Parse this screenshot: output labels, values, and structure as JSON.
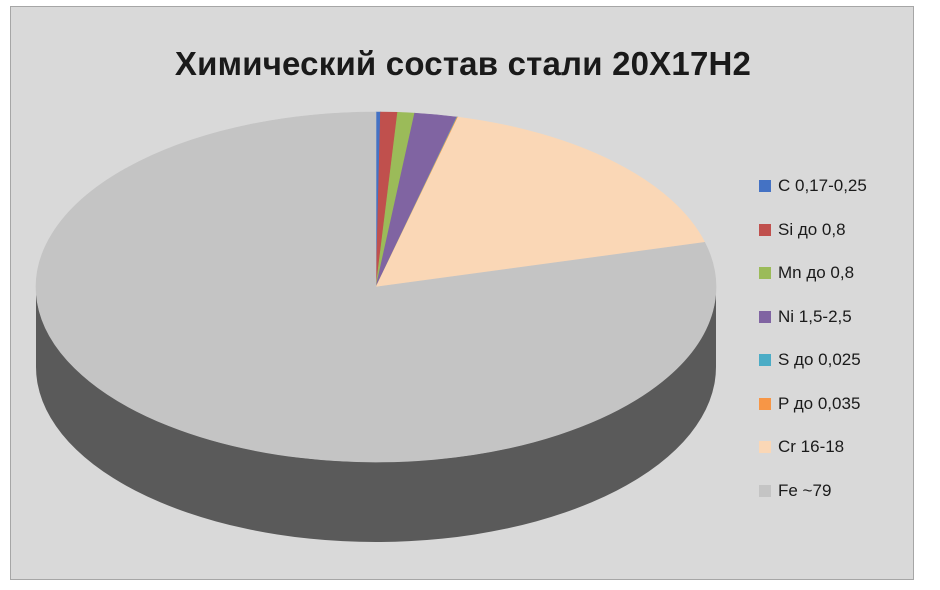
{
  "chart_data": {
    "type": "pie",
    "style": "3d",
    "title": "Химический состав стали 20Х17Н2",
    "legend_position": "right",
    "slices": [
      {
        "label": "C 0,17-0,25",
        "value": 0.21,
        "color": "#4472c4",
        "side_color": "#2f5597"
      },
      {
        "label": "Si до 0,8",
        "value": 0.8,
        "color": "#c0504d",
        "side_color": "#8b3735"
      },
      {
        "label": "Mn до 0,8",
        "value": 0.8,
        "color": "#9bbb59",
        "side_color": "#6f8a3c"
      },
      {
        "label": "Ni 1,5-2,5",
        "value": 2.0,
        "color": "#8064a2",
        "side_color": "#5b4677"
      },
      {
        "label": "S до 0,025",
        "value": 0.025,
        "color": "#4bacc6",
        "side_color": "#31819a"
      },
      {
        "label": "P до 0,035",
        "value": 0.035,
        "color": "#f79646",
        "side_color": "#c06c28"
      },
      {
        "label": "Cr 16-18",
        "value": 17.0,
        "color": "#fad7b6",
        "side_color": "#c4a283"
      },
      {
        "label": "Fe ~79",
        "value": 79.0,
        "color": "#c4c4c4",
        "side_color": "#5a5a5a"
      }
    ]
  }
}
